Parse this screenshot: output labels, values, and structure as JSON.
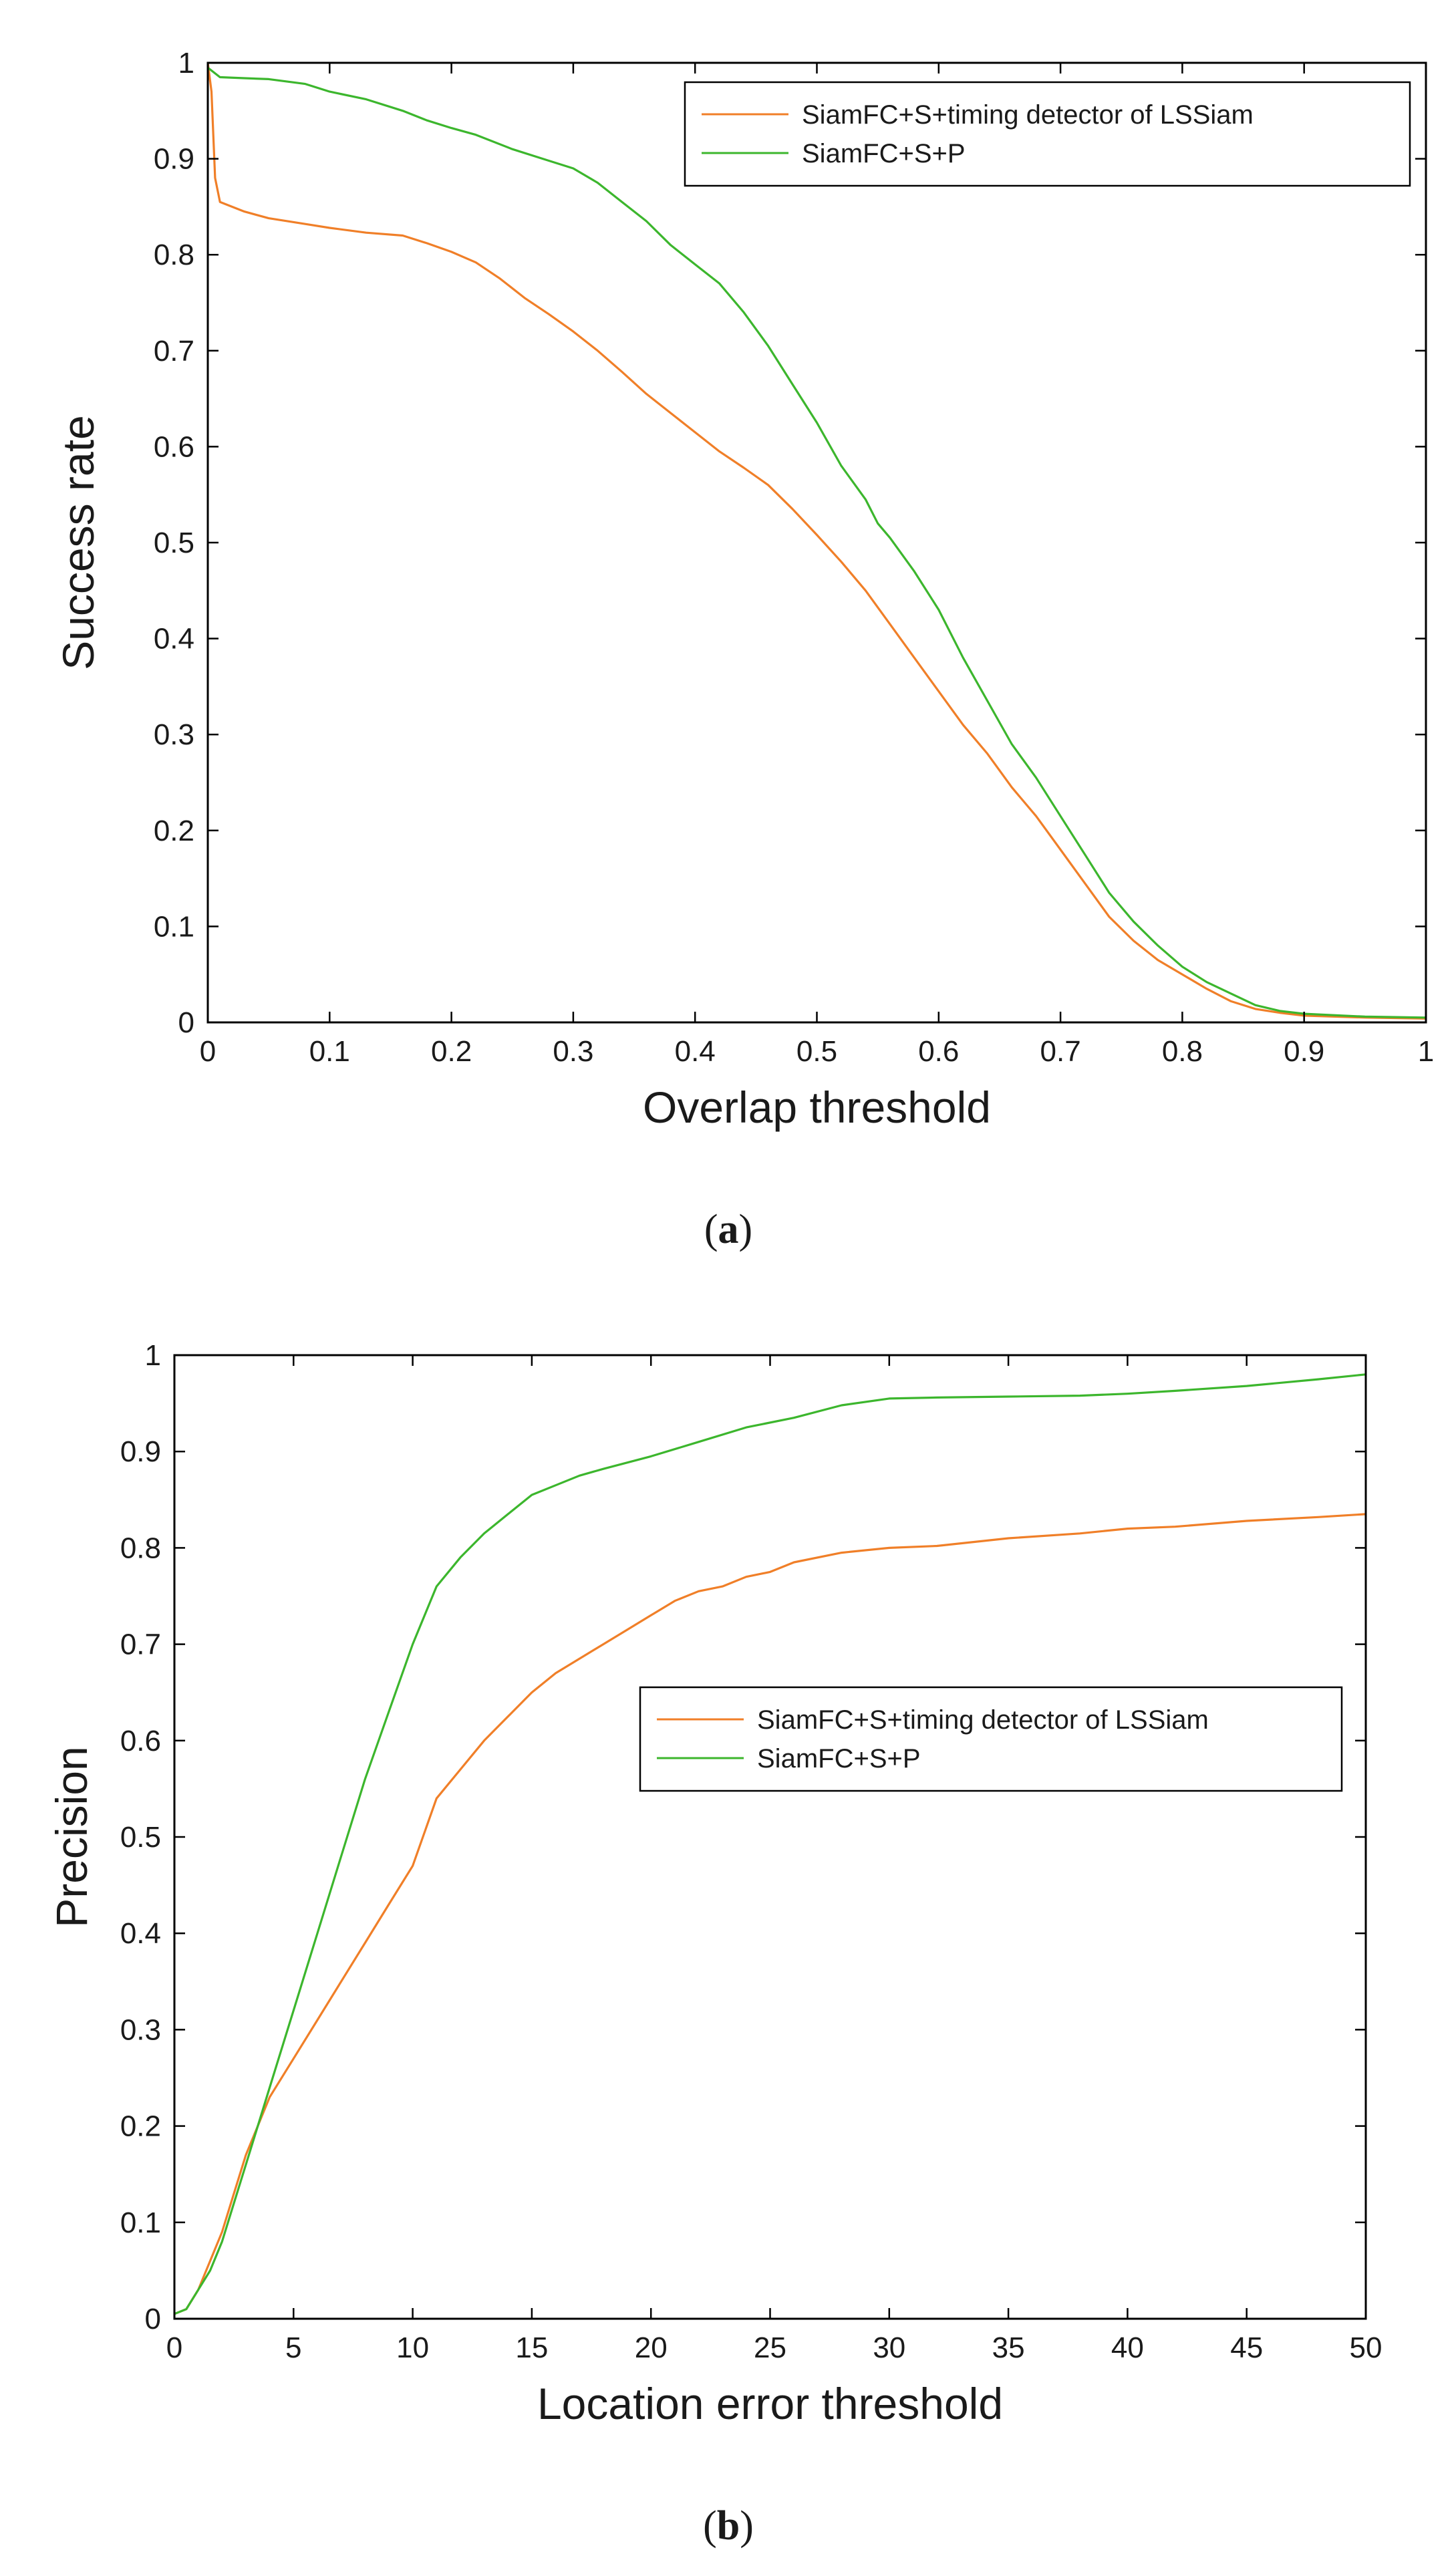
{
  "chart_data": [
    {
      "type": "line",
      "id": "a",
      "caption_open": "(",
      "caption_letter": "a",
      "caption_close": ")",
      "xlabel": "Overlap threshold",
      "ylabel": "Success rate",
      "xlim": [
        0,
        1
      ],
      "ylim": [
        0,
        1
      ],
      "xticks": [
        0,
        0.1,
        0.2,
        0.3,
        0.4,
        0.5,
        0.6,
        0.7,
        0.8,
        0.9,
        1
      ],
      "xtick_labels": [
        "0",
        "0.1",
        "0.2",
        "0.3",
        "0.4",
        "0.5",
        "0.6",
        "0.7",
        "0.8",
        "0.9",
        "1"
      ],
      "yticks": [
        0,
        0.1,
        0.2,
        0.3,
        0.4,
        0.5,
        0.6,
        0.7,
        0.8,
        0.9,
        1
      ],
      "ytick_labels": [
        "0",
        "0.1",
        "0.2",
        "0.3",
        "0.4",
        "0.5",
        "0.6",
        "0.7",
        "0.8",
        "0.9",
        "1"
      ],
      "grid": false,
      "legend_position": "top-right",
      "series": [
        {
          "name": "SiamFC+S+timing detector of LSSiam",
          "color": "#f07f28",
          "x": [
            0,
            0.003,
            0.006,
            0.01,
            0.03,
            0.05,
            0.08,
            0.1,
            0.13,
            0.16,
            0.18,
            0.2,
            0.22,
            0.24,
            0.26,
            0.28,
            0.3,
            0.32,
            0.34,
            0.36,
            0.38,
            0.4,
            0.42,
            0.44,
            0.46,
            0.48,
            0.5,
            0.52,
            0.54,
            0.56,
            0.58,
            0.6,
            0.62,
            0.64,
            0.66,
            0.68,
            0.7,
            0.72,
            0.74,
            0.76,
            0.78,
            0.8,
            0.82,
            0.84,
            0.86,
            0.88,
            0.9,
            0.95,
            1
          ],
          "values": [
            1,
            0.97,
            0.88,
            0.855,
            0.845,
            0.838,
            0.832,
            0.828,
            0.823,
            0.82,
            0.812,
            0.803,
            0.792,
            0.775,
            0.755,
            0.738,
            0.72,
            0.7,
            0.678,
            0.655,
            0.635,
            0.615,
            0.595,
            0.578,
            0.56,
            0.535,
            0.508,
            0.48,
            0.45,
            0.415,
            0.38,
            0.345,
            0.31,
            0.28,
            0.245,
            0.215,
            0.18,
            0.145,
            0.11,
            0.085,
            0.065,
            0.05,
            0.035,
            0.022,
            0.014,
            0.01,
            0.007,
            0.005,
            0.004
          ]
        },
        {
          "name": "SiamFC+S+P",
          "color": "#3cb62d",
          "x": [
            0,
            0.005,
            0.01,
            0.03,
            0.05,
            0.08,
            0.1,
            0.13,
            0.16,
            0.18,
            0.2,
            0.22,
            0.25,
            0.28,
            0.3,
            0.32,
            0.34,
            0.36,
            0.38,
            0.4,
            0.42,
            0.44,
            0.46,
            0.48,
            0.5,
            0.52,
            0.54,
            0.55,
            0.56,
            0.58,
            0.6,
            0.62,
            0.64,
            0.66,
            0.68,
            0.7,
            0.72,
            0.74,
            0.76,
            0.78,
            0.8,
            0.82,
            0.84,
            0.86,
            0.88,
            0.9,
            0.95,
            1
          ],
          "values": [
            0.995,
            0.99,
            0.985,
            0.984,
            0.983,
            0.978,
            0.97,
            0.962,
            0.95,
            0.94,
            0.932,
            0.925,
            0.91,
            0.898,
            0.89,
            0.875,
            0.855,
            0.835,
            0.81,
            0.79,
            0.77,
            0.74,
            0.705,
            0.665,
            0.625,
            0.58,
            0.545,
            0.52,
            0.505,
            0.47,
            0.43,
            0.38,
            0.335,
            0.29,
            0.255,
            0.215,
            0.175,
            0.135,
            0.105,
            0.08,
            0.058,
            0.042,
            0.03,
            0.018,
            0.012,
            0.009,
            0.006,
            0.005
          ]
        }
      ]
    },
    {
      "type": "line",
      "id": "b",
      "caption_open": "(",
      "caption_letter": "b",
      "caption_close": ")",
      "xlabel": "Location error threshold",
      "ylabel": "Precision",
      "xlim": [
        0,
        50
      ],
      "ylim": [
        0,
        1
      ],
      "xticks": [
        0,
        5,
        10,
        15,
        20,
        25,
        30,
        35,
        40,
        45,
        50
      ],
      "xtick_labels": [
        "0",
        "5",
        "10",
        "15",
        "20",
        "25",
        "30",
        "35",
        "40",
        "45",
        "50"
      ],
      "yticks": [
        0,
        0.1,
        0.2,
        0.3,
        0.4,
        0.5,
        0.6,
        0.7,
        0.8,
        0.9,
        1
      ],
      "ytick_labels": [
        "0",
        "0.1",
        "0.2",
        "0.3",
        "0.4",
        "0.5",
        "0.6",
        "0.7",
        "0.8",
        "0.9",
        "1"
      ],
      "grid": false,
      "legend_position": "center-right",
      "series": [
        {
          "name": "SiamFC+S+timing detector of LSSiam",
          "color": "#f07f28",
          "x": [
            0,
            0.5,
            1,
            1.5,
            2,
            2.5,
            3,
            3.5,
            4,
            5,
            6,
            7,
            8,
            9,
            10,
            11,
            12,
            13,
            14,
            15,
            16,
            17,
            18,
            19,
            20,
            21,
            22,
            23,
            24,
            25,
            26,
            28,
            30,
            32,
            35,
            38,
            40,
            42,
            45,
            48,
            50
          ],
          "values": [
            0.005,
            0.01,
            0.03,
            0.06,
            0.09,
            0.13,
            0.17,
            0.2,
            0.23,
            0.27,
            0.31,
            0.35,
            0.39,
            0.43,
            0.47,
            0.54,
            0.57,
            0.6,
            0.625,
            0.65,
            0.67,
            0.685,
            0.7,
            0.715,
            0.73,
            0.745,
            0.755,
            0.76,
            0.77,
            0.775,
            0.785,
            0.795,
            0.8,
            0.802,
            0.81,
            0.815,
            0.82,
            0.822,
            0.828,
            0.832,
            0.835
          ]
        },
        {
          "name": "SiamFC+S+P",
          "color": "#3cb62d",
          "x": [
            0,
            0.5,
            1,
            1.5,
            2,
            2.5,
            3,
            3.5,
            4,
            5,
            6,
            7,
            8,
            9,
            10,
            11,
            12,
            13,
            14,
            15,
            16,
            17,
            18,
            20,
            22,
            24,
            26,
            28,
            30,
            32,
            35,
            38,
            40,
            42,
            45,
            48,
            50
          ],
          "values": [
            0.005,
            0.01,
            0.03,
            0.05,
            0.08,
            0.12,
            0.16,
            0.2,
            0.24,
            0.32,
            0.4,
            0.48,
            0.56,
            0.63,
            0.7,
            0.76,
            0.79,
            0.815,
            0.835,
            0.855,
            0.865,
            0.875,
            0.882,
            0.895,
            0.91,
            0.925,
            0.935,
            0.948,
            0.955,
            0.956,
            0.957,
            0.958,
            0.96,
            0.963,
            0.968,
            0.975,
            0.98
          ]
        }
      ]
    }
  ]
}
